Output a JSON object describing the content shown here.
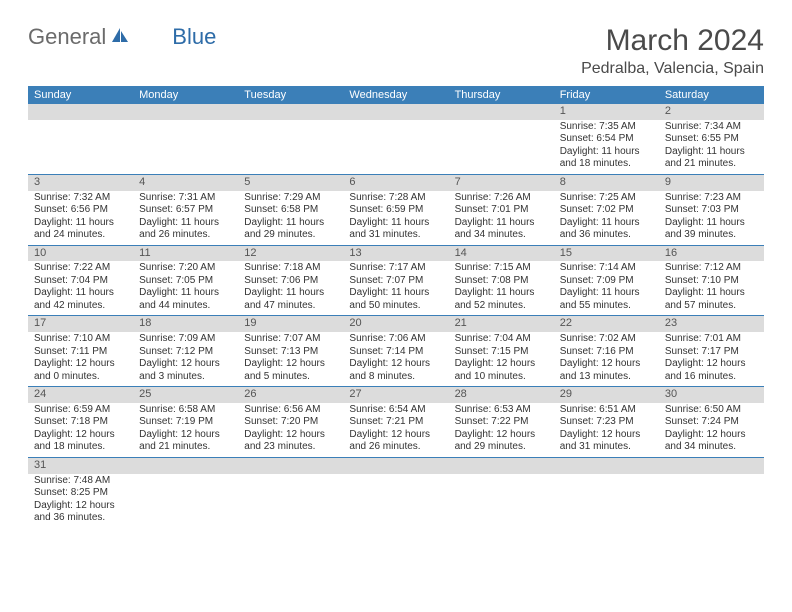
{
  "brand": {
    "part1": "General",
    "part2": "Blue"
  },
  "title": "March 2024",
  "location": "Pedralba, Valencia, Spain",
  "colors": {
    "header_bg": "#3b7fb8",
    "header_text": "#ffffff",
    "daynum_bg": "#dcdcdc",
    "cell_border": "#3b7fb8",
    "brand_gray": "#6b6b6b",
    "brand_blue": "#2e6ca8"
  },
  "day_headers": [
    "Sunday",
    "Monday",
    "Tuesday",
    "Wednesday",
    "Thursday",
    "Friday",
    "Saturday"
  ],
  "weeks": [
    [
      {
        "n": "",
        "sr": "",
        "ss": "",
        "dl": ""
      },
      {
        "n": "",
        "sr": "",
        "ss": "",
        "dl": ""
      },
      {
        "n": "",
        "sr": "",
        "ss": "",
        "dl": ""
      },
      {
        "n": "",
        "sr": "",
        "ss": "",
        "dl": ""
      },
      {
        "n": "",
        "sr": "",
        "ss": "",
        "dl": ""
      },
      {
        "n": "1",
        "sr": "Sunrise: 7:35 AM",
        "ss": "Sunset: 6:54 PM",
        "dl": "Daylight: 11 hours and 18 minutes."
      },
      {
        "n": "2",
        "sr": "Sunrise: 7:34 AM",
        "ss": "Sunset: 6:55 PM",
        "dl": "Daylight: 11 hours and 21 minutes."
      }
    ],
    [
      {
        "n": "3",
        "sr": "Sunrise: 7:32 AM",
        "ss": "Sunset: 6:56 PM",
        "dl": "Daylight: 11 hours and 24 minutes."
      },
      {
        "n": "4",
        "sr": "Sunrise: 7:31 AM",
        "ss": "Sunset: 6:57 PM",
        "dl": "Daylight: 11 hours and 26 minutes."
      },
      {
        "n": "5",
        "sr": "Sunrise: 7:29 AM",
        "ss": "Sunset: 6:58 PM",
        "dl": "Daylight: 11 hours and 29 minutes."
      },
      {
        "n": "6",
        "sr": "Sunrise: 7:28 AM",
        "ss": "Sunset: 6:59 PM",
        "dl": "Daylight: 11 hours and 31 minutes."
      },
      {
        "n": "7",
        "sr": "Sunrise: 7:26 AM",
        "ss": "Sunset: 7:01 PM",
        "dl": "Daylight: 11 hours and 34 minutes."
      },
      {
        "n": "8",
        "sr": "Sunrise: 7:25 AM",
        "ss": "Sunset: 7:02 PM",
        "dl": "Daylight: 11 hours and 36 minutes."
      },
      {
        "n": "9",
        "sr": "Sunrise: 7:23 AM",
        "ss": "Sunset: 7:03 PM",
        "dl": "Daylight: 11 hours and 39 minutes."
      }
    ],
    [
      {
        "n": "10",
        "sr": "Sunrise: 7:22 AM",
        "ss": "Sunset: 7:04 PM",
        "dl": "Daylight: 11 hours and 42 minutes."
      },
      {
        "n": "11",
        "sr": "Sunrise: 7:20 AM",
        "ss": "Sunset: 7:05 PM",
        "dl": "Daylight: 11 hours and 44 minutes."
      },
      {
        "n": "12",
        "sr": "Sunrise: 7:18 AM",
        "ss": "Sunset: 7:06 PM",
        "dl": "Daylight: 11 hours and 47 minutes."
      },
      {
        "n": "13",
        "sr": "Sunrise: 7:17 AM",
        "ss": "Sunset: 7:07 PM",
        "dl": "Daylight: 11 hours and 50 minutes."
      },
      {
        "n": "14",
        "sr": "Sunrise: 7:15 AM",
        "ss": "Sunset: 7:08 PM",
        "dl": "Daylight: 11 hours and 52 minutes."
      },
      {
        "n": "15",
        "sr": "Sunrise: 7:14 AM",
        "ss": "Sunset: 7:09 PM",
        "dl": "Daylight: 11 hours and 55 minutes."
      },
      {
        "n": "16",
        "sr": "Sunrise: 7:12 AM",
        "ss": "Sunset: 7:10 PM",
        "dl": "Daylight: 11 hours and 57 minutes."
      }
    ],
    [
      {
        "n": "17",
        "sr": "Sunrise: 7:10 AM",
        "ss": "Sunset: 7:11 PM",
        "dl": "Daylight: 12 hours and 0 minutes."
      },
      {
        "n": "18",
        "sr": "Sunrise: 7:09 AM",
        "ss": "Sunset: 7:12 PM",
        "dl": "Daylight: 12 hours and 3 minutes."
      },
      {
        "n": "19",
        "sr": "Sunrise: 7:07 AM",
        "ss": "Sunset: 7:13 PM",
        "dl": "Daylight: 12 hours and 5 minutes."
      },
      {
        "n": "20",
        "sr": "Sunrise: 7:06 AM",
        "ss": "Sunset: 7:14 PM",
        "dl": "Daylight: 12 hours and 8 minutes."
      },
      {
        "n": "21",
        "sr": "Sunrise: 7:04 AM",
        "ss": "Sunset: 7:15 PM",
        "dl": "Daylight: 12 hours and 10 minutes."
      },
      {
        "n": "22",
        "sr": "Sunrise: 7:02 AM",
        "ss": "Sunset: 7:16 PM",
        "dl": "Daylight: 12 hours and 13 minutes."
      },
      {
        "n": "23",
        "sr": "Sunrise: 7:01 AM",
        "ss": "Sunset: 7:17 PM",
        "dl": "Daylight: 12 hours and 16 minutes."
      }
    ],
    [
      {
        "n": "24",
        "sr": "Sunrise: 6:59 AM",
        "ss": "Sunset: 7:18 PM",
        "dl": "Daylight: 12 hours and 18 minutes."
      },
      {
        "n": "25",
        "sr": "Sunrise: 6:58 AM",
        "ss": "Sunset: 7:19 PM",
        "dl": "Daylight: 12 hours and 21 minutes."
      },
      {
        "n": "26",
        "sr": "Sunrise: 6:56 AM",
        "ss": "Sunset: 7:20 PM",
        "dl": "Daylight: 12 hours and 23 minutes."
      },
      {
        "n": "27",
        "sr": "Sunrise: 6:54 AM",
        "ss": "Sunset: 7:21 PM",
        "dl": "Daylight: 12 hours and 26 minutes."
      },
      {
        "n": "28",
        "sr": "Sunrise: 6:53 AM",
        "ss": "Sunset: 7:22 PM",
        "dl": "Daylight: 12 hours and 29 minutes."
      },
      {
        "n": "29",
        "sr": "Sunrise: 6:51 AM",
        "ss": "Sunset: 7:23 PM",
        "dl": "Daylight: 12 hours and 31 minutes."
      },
      {
        "n": "30",
        "sr": "Sunrise: 6:50 AM",
        "ss": "Sunset: 7:24 PM",
        "dl": "Daylight: 12 hours and 34 minutes."
      }
    ],
    [
      {
        "n": "31",
        "sr": "Sunrise: 7:48 AM",
        "ss": "Sunset: 8:25 PM",
        "dl": "Daylight: 12 hours and 36 minutes."
      },
      {
        "n": "",
        "sr": "",
        "ss": "",
        "dl": ""
      },
      {
        "n": "",
        "sr": "",
        "ss": "",
        "dl": ""
      },
      {
        "n": "",
        "sr": "",
        "ss": "",
        "dl": ""
      },
      {
        "n": "",
        "sr": "",
        "ss": "",
        "dl": ""
      },
      {
        "n": "",
        "sr": "",
        "ss": "",
        "dl": ""
      },
      {
        "n": "",
        "sr": "",
        "ss": "",
        "dl": ""
      }
    ]
  ]
}
